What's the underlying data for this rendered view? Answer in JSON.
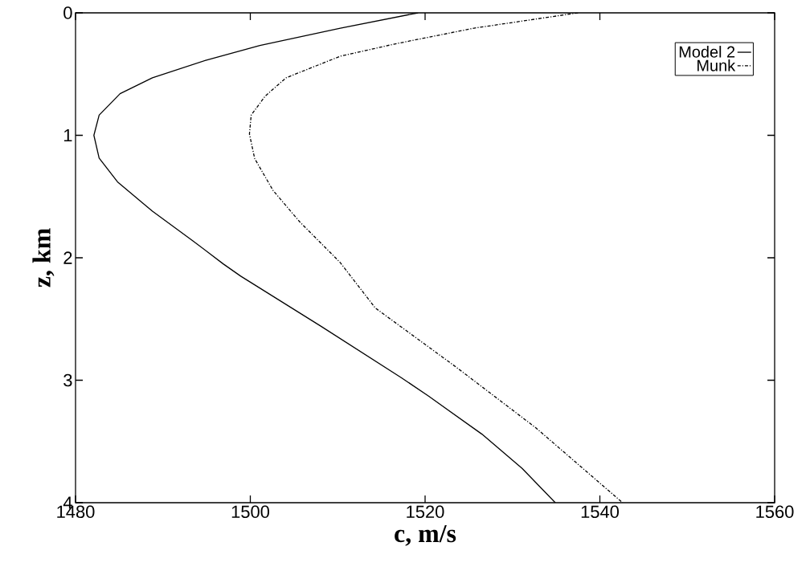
{
  "chart_data": {
    "type": "line",
    "xlabel": "c, m/s",
    "ylabel": "z, km",
    "xlim": [
      1480,
      1560
    ],
    "xticks": [
      1480,
      1500,
      1520,
      1540,
      1560
    ],
    "ylim": [
      4,
      0
    ],
    "yticks": [
      0,
      1,
      2,
      3,
      4
    ],
    "grid": false,
    "legend": "top right",
    "marker": "none",
    "series": [
      {
        "name": "Model 2",
        "color": "#000000",
        "line_style": "solid",
        "x": [
          1519.2,
          1510.3,
          1501.1,
          1494.9,
          1488.8,
          1485.1,
          1482.7,
          1482.1,
          1482.7,
          1484.8,
          1488.8,
          1493.4,
          1496.9,
          1498.9,
          1508.1,
          1517.3,
          1520.4,
          1526.5,
          1531.1,
          1534.9
        ],
        "values": [
          0,
          0.125,
          0.267,
          0.387,
          0.53,
          0.66,
          0.835,
          1.0,
          1.186,
          1.38,
          1.62,
          1.86,
          2.05,
          2.15,
          2.56,
          2.98,
          3.13,
          3.44,
          3.72,
          4.0
        ]
      },
      {
        "name": "Munk",
        "color": "#000000",
        "line_style": "dashdotted",
        "x": [
          1537.5,
          1525.6,
          1516.4,
          1510.3,
          1504.1,
          1501.7,
          1500.1,
          1499.9,
          1500.5,
          1502.6,
          1505.7,
          1510.3,
          1514.3,
          1523.5,
          1532.7,
          1542.6
        ],
        "values": [
          0,
          0.125,
          0.256,
          0.354,
          0.53,
          0.68,
          0.835,
          0.99,
          1.19,
          1.45,
          1.71,
          2.04,
          2.41,
          2.89,
          3.39,
          4.0
        ]
      }
    ]
  }
}
